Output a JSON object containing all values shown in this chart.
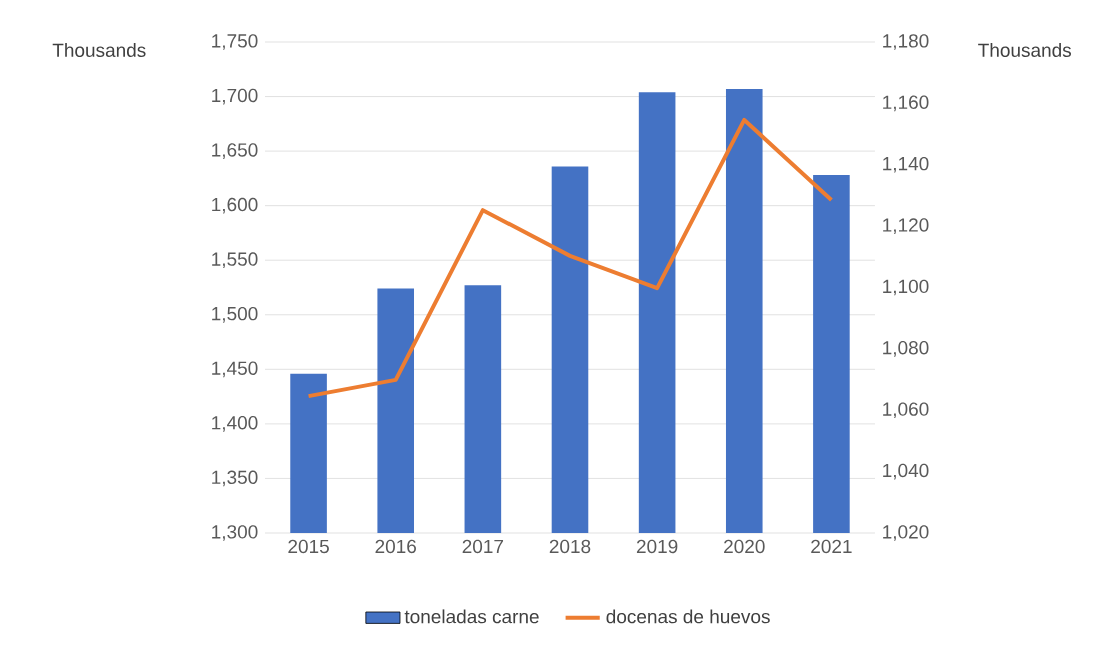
{
  "chart_data": {
    "type": "bar",
    "categories": [
      "2015",
      "2016",
      "2017",
      "2018",
      "2019",
      "2020",
      "2021"
    ],
    "series": [
      {
        "name": "toneladas carne",
        "color": "#4472c4",
        "values": [
          1446,
          1524,
          1527,
          1636,
          1704,
          1707,
          1628
        ]
      },
      {
        "name": "docenas de huevos",
        "type": "line",
        "axis": "y2",
        "color": "#ed7d31",
        "values": [
          1064.6,
          1069.9,
          1125.2,
          1110.3,
          1099.8,
          1154.6,
          1128.5
        ]
      }
    ],
    "ylabel": "Thousands",
    "y2label": "Thousands",
    "ylim": [
      1300,
      1750
    ],
    "yticks": [
      {
        "value": 1300,
        "label": "1,300"
      },
      {
        "value": 1350,
        "label": "1,350"
      },
      {
        "value": 1400,
        "label": "1,400"
      },
      {
        "value": 1450,
        "label": "1,450"
      },
      {
        "value": 1500,
        "label": "1,500"
      },
      {
        "value": 1550,
        "label": "1,550"
      },
      {
        "value": 1600,
        "label": "1,600"
      },
      {
        "value": 1650,
        "label": "1,650"
      },
      {
        "value": 1700,
        "label": "1,700"
      },
      {
        "value": 1750,
        "label": "1,750"
      }
    ],
    "y2lim": [
      1020,
      1180
    ],
    "y2ticks": [
      {
        "value": 1020,
        "label": "1,020"
      },
      {
        "value": 1040,
        "label": "1,040"
      },
      {
        "value": 1060,
        "label": "1,060"
      },
      {
        "value": 1080,
        "label": "1,080"
      },
      {
        "value": 1100,
        "label": "1,100"
      },
      {
        "value": 1120,
        "label": "1,120"
      },
      {
        "value": 1140,
        "label": "1,140"
      },
      {
        "value": 1160,
        "label": "1,160"
      },
      {
        "value": 1180,
        "label": "1,180"
      }
    ],
    "grid": "y",
    "legend": "bottom"
  }
}
